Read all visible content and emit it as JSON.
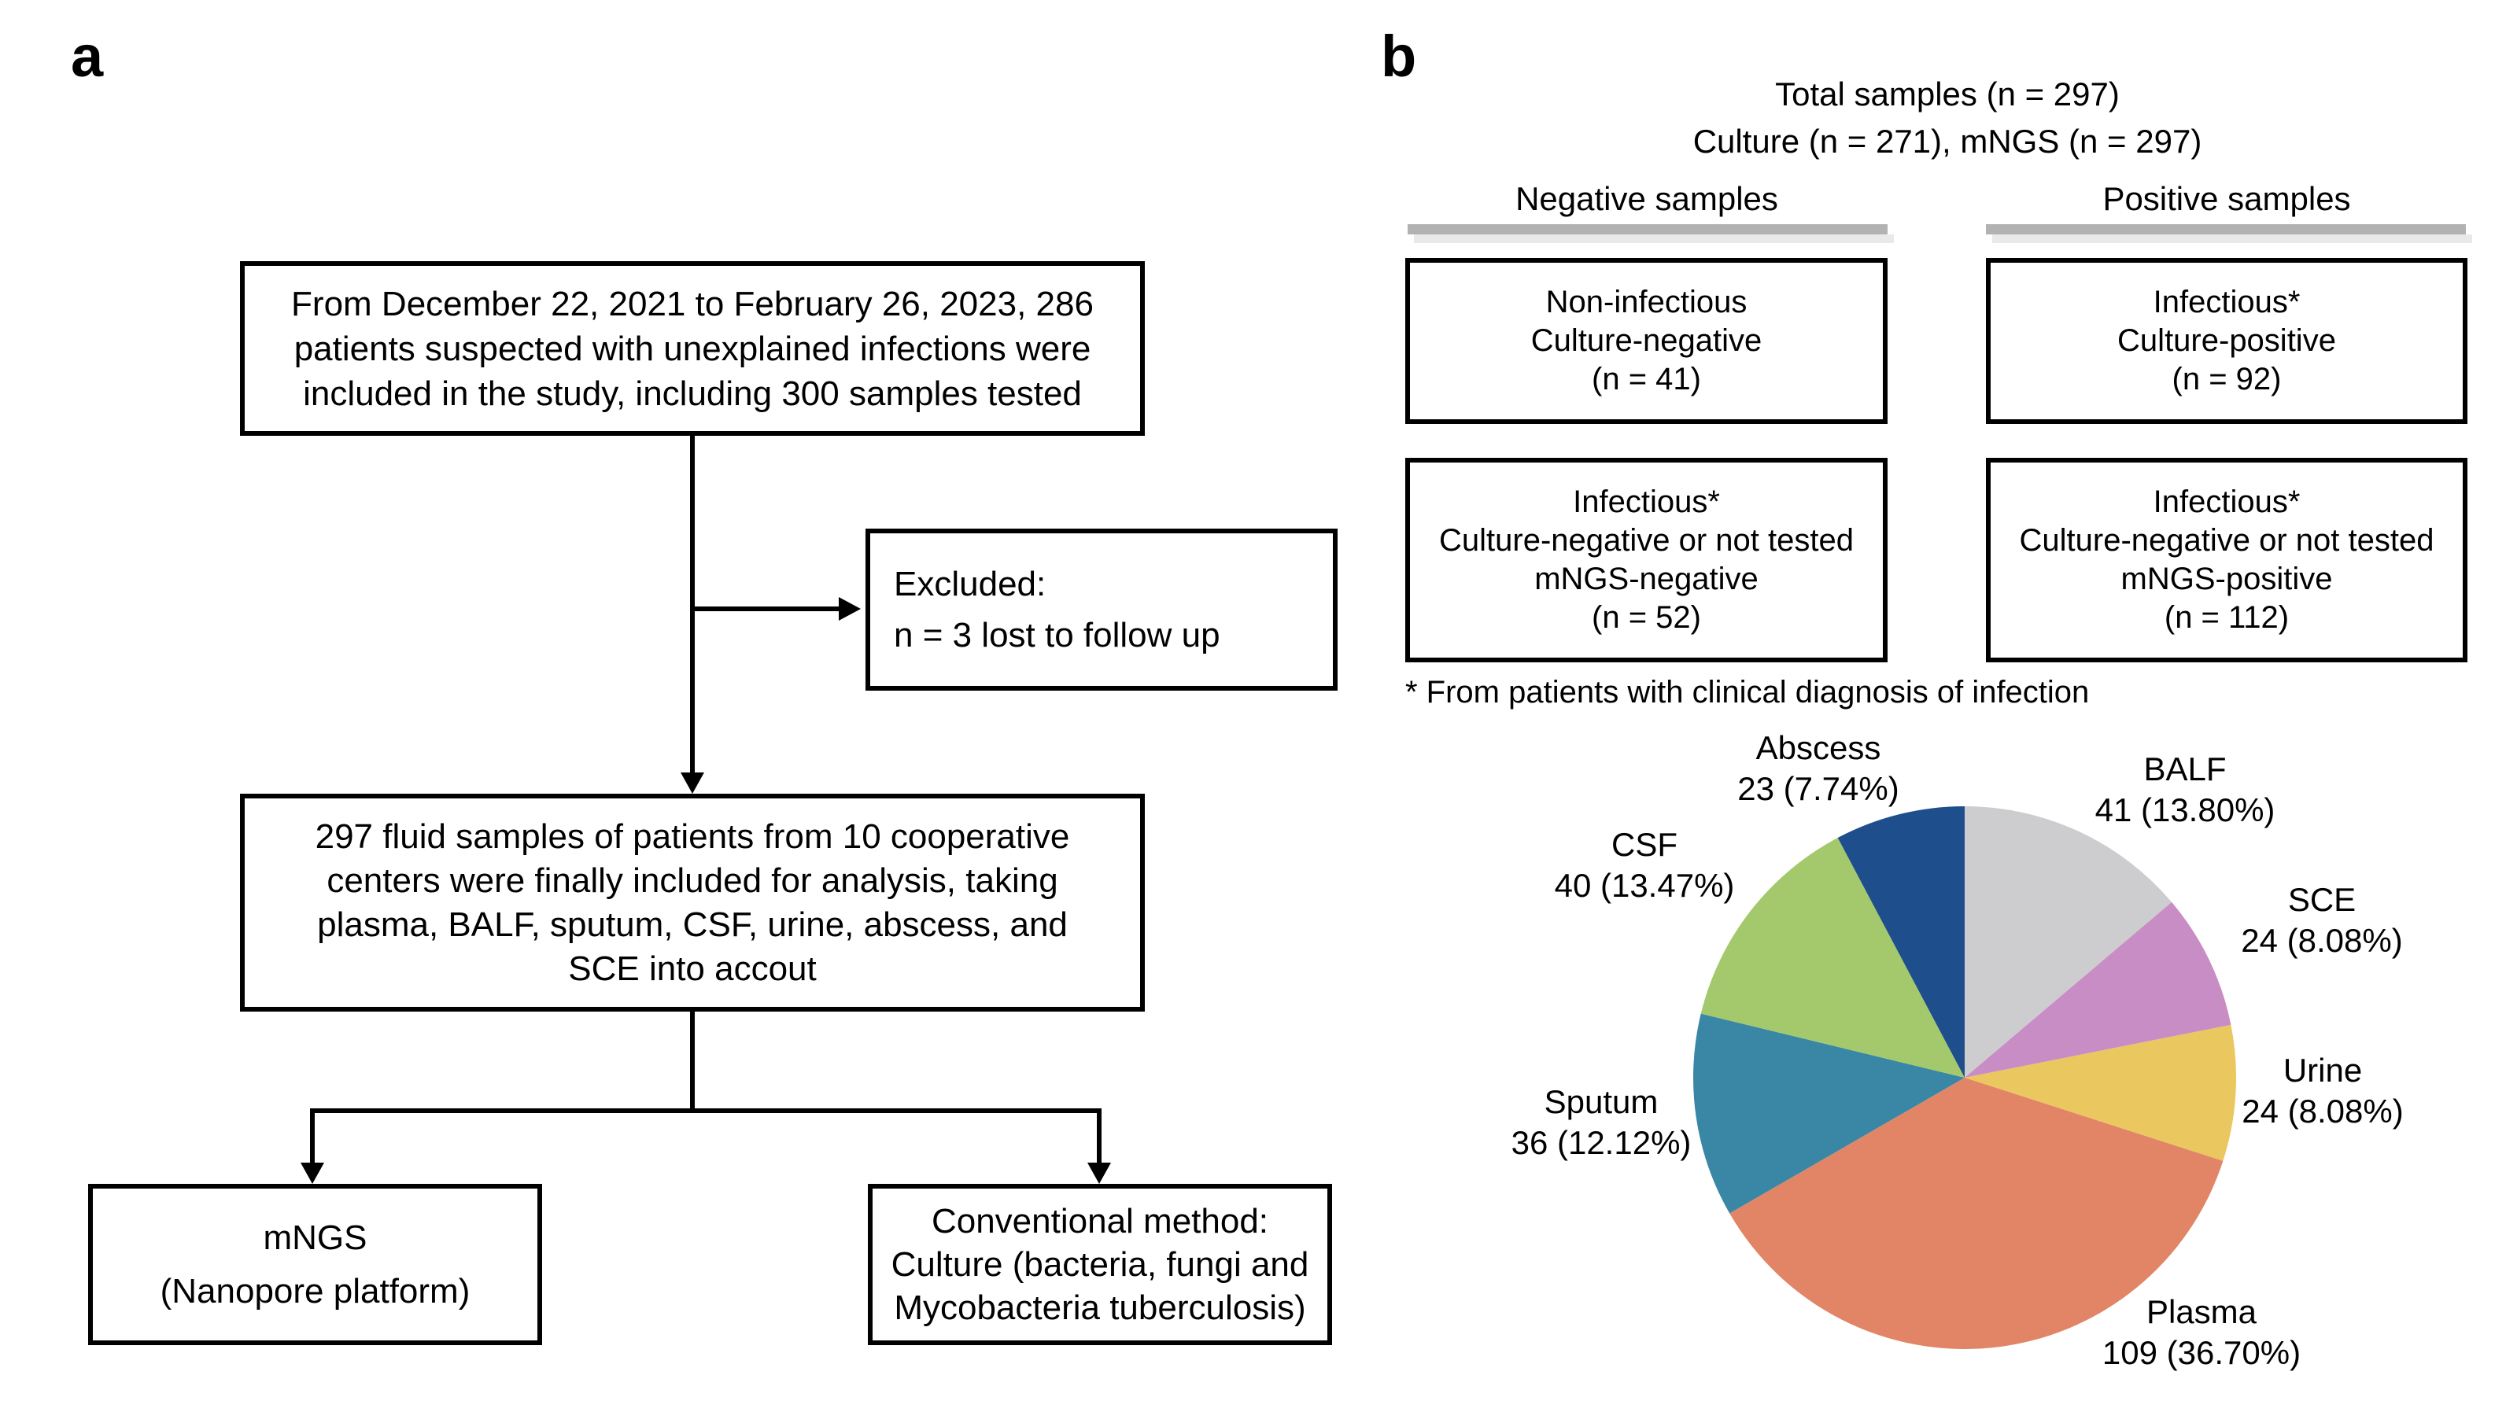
{
  "panel_a": {
    "label": "a",
    "box1": {
      "lines": [
        "From December 22, 2021 to February 26, 2023, 286",
        "patients suspected with unexplained infections were",
        "included in the study, including 300 samples tested"
      ]
    },
    "excluded_box": {
      "lines": [
        "Excluded:",
        "n = 3 lost to follow up"
      ]
    },
    "box2": {
      "lines": [
        "297 fluid samples of patients from 10 cooperative",
        "centers were finally included for analysis, taking",
        "plasma, BALF, sputum, CSF, urine, abscess, and",
        "SCE into accout"
      ]
    },
    "mngs_box": {
      "lines": [
        "mNGS",
        "(Nanopore platform)"
      ]
    },
    "conventional_box": {
      "lines": [
        "Conventional method:",
        "Culture (bacteria, fungi and",
        "Mycobacteria tuberculosis)"
      ]
    }
  },
  "panel_b": {
    "label": "b",
    "header_line1": "Total samples (n = 297)",
    "header_line2": "Culture (n = 271), mNGS (n = 297)",
    "negative_header": "Negative samples",
    "positive_header": "Positive samples",
    "neg_box1": {
      "lines": [
        "Non-infectious",
        "Culture-negative",
        "(n = 41)"
      ]
    },
    "pos_box1": {
      "lines": [
        "Infectious*",
        "Culture-positive",
        "(n = 92)"
      ]
    },
    "neg_box2": {
      "lines": [
        "Infectious*",
        "Culture-negative or not tested",
        "mNGS-negative",
        "(n = 52)"
      ]
    },
    "pos_box2": {
      "lines": [
        "Infectious*",
        "Culture-negative or not tested",
        "mNGS-positive",
        "(n = 112)"
      ]
    },
    "footnote": "* From patients with clinical diagnosis of infection"
  },
  "chart_data": {
    "type": "pie",
    "total": 297,
    "direction": "clockwise",
    "start_angle": "12-oclock",
    "legend_position": "labels-around-pie",
    "slices": [
      {
        "label": "BALF",
        "count": 41,
        "pct": 13.8,
        "value_text": "41 (13.80%)",
        "color": "#cdcdd0"
      },
      {
        "label": "SCE",
        "count": 24,
        "pct": 8.08,
        "value_text": "24 (8.08%)",
        "color": "#c98dc5"
      },
      {
        "label": "Urine",
        "count": 24,
        "pct": 8.08,
        "value_text": "24 (8.08%)",
        "color": "#eac75f"
      },
      {
        "label": "Plasma",
        "count": 109,
        "pct": 36.7,
        "value_text": "109 (36.70%)",
        "color": "#e28566"
      },
      {
        "label": "Sputum",
        "count": 36,
        "pct": 12.12,
        "value_text": "36 (12.12%)",
        "color": "#3a87a5"
      },
      {
        "label": "CSF",
        "count": 40,
        "pct": 13.47,
        "value_text": "40 (13.47%)",
        "color": "#a4c96c"
      },
      {
        "label": "Abscess",
        "count": 23,
        "pct": 7.74,
        "value_text": "23 (7.74%)",
        "color": "#1e4e8c"
      }
    ]
  }
}
